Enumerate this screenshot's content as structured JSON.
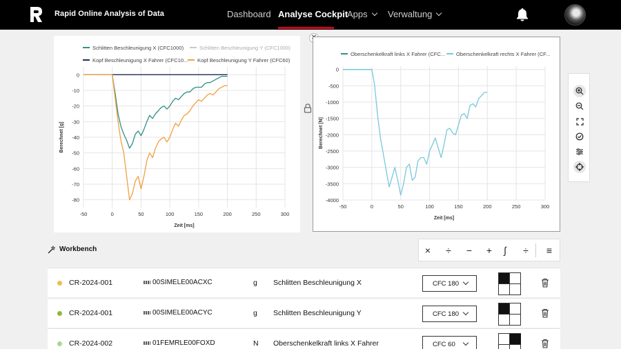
{
  "app": {
    "brand": "Rapid Online Analysis of Data"
  },
  "nav": {
    "items": [
      {
        "label": "Dashboard",
        "active": false,
        "dropdown": false
      },
      {
        "label": "Analyse Cockpit",
        "active": true,
        "dropdown": false
      },
      {
        "label": "Apps",
        "active": false,
        "dropdown": true
      },
      {
        "label": "Verwaltung",
        "active": false,
        "dropdown": true
      }
    ]
  },
  "colors": {
    "accent_red": "#d5001c",
    "teal": "#2f8f86",
    "navy": "#1f2d5a",
    "orange": "#f0a040",
    "lightblue": "#79c7dc",
    "lightgray": "#c8c8c8"
  },
  "charts": {
    "left": {
      "legend": [
        {
          "label": "Schlitten Beschleunigung X (CFC1000)",
          "color": "#2f8f86",
          "muted": false
        },
        {
          "label": "Schlitten Beschleunigung Y (CFC1000)",
          "color": "#c8c8c8",
          "muted": true
        },
        {
          "label": "Kopf Beschleunigung X Fahrer (CFC10...",
          "color": "#1f2d5a",
          "muted": false
        },
        {
          "label": "Kopf Beschleunigung Y Fahrer (CFC60)",
          "color": "#f0a040",
          "muted": false
        }
      ],
      "xlabel": "Zeit [ms]",
      "ylabel": "Berechnet [g]"
    },
    "right": {
      "legend": [
        {
          "label": "Oberschenkelkraft links X Fahrer (CFC...",
          "color": "#2f8f86"
        },
        {
          "label": "Oberschenkelkraft rechts X Fahrer (CF...",
          "color": "#79c7dc"
        }
      ],
      "xlabel": "Zeit [ms]",
      "ylabel": "Berechnet [N]"
    }
  },
  "chart_data": [
    {
      "type": "line",
      "xlabel": "Zeit [ms]",
      "ylabel": "Berechnet [g]",
      "xlim": [
        -50,
        300
      ],
      "ylim": [
        -85,
        5
      ],
      "xticks": [
        -50,
        0,
        50,
        100,
        150,
        200,
        250,
        300
      ],
      "yticks": [
        0,
        -10,
        -20,
        -30,
        -40,
        -50,
        -60,
        -70,
        -80
      ],
      "grid": true,
      "legend_position": "top",
      "series": [
        {
          "name": "Schlitten Beschleunigung X (CFC1000)",
          "color": "#2f8f86",
          "x": [
            -50,
            0,
            5,
            10,
            15,
            20,
            25,
            30,
            35,
            40,
            45,
            50,
            55,
            60,
            65,
            70,
            75,
            80,
            85,
            90,
            95,
            100,
            105,
            110,
            115,
            120,
            125,
            130,
            135,
            140,
            145,
            150,
            155,
            160,
            165,
            170,
            175,
            180,
            185,
            190,
            195,
            200
          ],
          "y": [
            0,
            0,
            -12,
            -25,
            -33,
            -38,
            -42,
            -47,
            -44,
            -38,
            -36,
            -39,
            -35,
            -30,
            -26,
            -28,
            -25,
            -23,
            -21,
            -20,
            -22,
            -20,
            -17,
            -15,
            -16,
            -14,
            -12,
            -11,
            -11,
            -9,
            -8,
            -8,
            -8,
            -6,
            -5,
            -5,
            -4,
            -3,
            -2,
            -1,
            -1,
            -1
          ]
        },
        {
          "name": "Schlitten Beschleunigung Y (CFC1000)",
          "color": "#c8c8c8",
          "x": [
            -50,
            200
          ],
          "y": [
            0,
            0
          ]
        },
        {
          "name": "Kopf Beschleunigung X Fahrer (CFC10...",
          "color": "#1f2d5a",
          "x": [
            -50,
            200
          ],
          "y": [
            0,
            0
          ]
        },
        {
          "name": "Kopf Beschleunigung Y Fahrer (CFC60)",
          "color": "#f0a040",
          "x": [
            -50,
            0,
            5,
            10,
            15,
            20,
            25,
            30,
            35,
            40,
            45,
            50,
            55,
            60,
            65,
            70,
            75,
            80,
            85,
            90,
            95,
            100,
            105,
            110,
            115,
            120,
            125,
            130,
            135,
            140,
            145,
            150,
            155,
            160,
            165,
            170,
            175,
            180,
            185,
            190,
            195,
            200
          ],
          "y": [
            0,
            0,
            -15,
            -30,
            -42,
            -50,
            -65,
            -80,
            -76,
            -68,
            -65,
            -73,
            -65,
            -55,
            -50,
            -53,
            -47,
            -43,
            -41,
            -40,
            -43,
            -40,
            -35,
            -31,
            -33,
            -29,
            -26,
            -25,
            -23,
            -20,
            -18,
            -16,
            -17,
            -15,
            -13,
            -12,
            -13,
            -11,
            -9,
            -8,
            -7,
            -7
          ]
        }
      ]
    },
    {
      "type": "line",
      "xlabel": "Zeit [ms]",
      "ylabel": "Berechnet [N]",
      "xlim": [
        -50,
        300
      ],
      "ylim": [
        -4000,
        100
      ],
      "xticks": [
        -50,
        0,
        50,
        100,
        150,
        200,
        250,
        300
      ],
      "yticks": [
        0,
        -500,
        -1000,
        -1500,
        -2000,
        -2500,
        -3000,
        -3500,
        -4000
      ],
      "grid": true,
      "legend_position": "top",
      "series": [
        {
          "name": "Oberschenkelkraft links X Fahrer (CFC...",
          "color": "#2f8f86",
          "x": [
            -50,
            0
          ],
          "y": [
            0,
            0
          ]
        },
        {
          "name": "Oberschenkelkraft rechts X Fahrer (CF...",
          "color": "#79c7dc",
          "x": [
            -50,
            0,
            5,
            10,
            15,
            20,
            25,
            30,
            35,
            40,
            45,
            50,
            55,
            60,
            65,
            70,
            75,
            80,
            85,
            90,
            95,
            100,
            105,
            110,
            115,
            120,
            125,
            130,
            135,
            140,
            145,
            150,
            155,
            160,
            165,
            170,
            175,
            180,
            185,
            190,
            195,
            200
          ],
          "y": [
            0,
            0,
            -500,
            -1400,
            -2100,
            -2600,
            -3100,
            -3600,
            -3300,
            -3000,
            -3400,
            -3850,
            -3500,
            -3000,
            -2900,
            -3400,
            -3300,
            -2800,
            -2700,
            -2700,
            -2900,
            -2500,
            -2300,
            -2100,
            -2400,
            -2700,
            -2300,
            -1850,
            -1800,
            -1950,
            -2000,
            -1700,
            -1400,
            -1350,
            -1500,
            -1100,
            -1050,
            -1150,
            -900,
            -800,
            -700,
            -700
          ]
        }
      ]
    }
  ],
  "workbench": {
    "title": "Workbench",
    "operations": [
      "×",
      "÷",
      "−",
      "+",
      "∫",
      "÷",
      "≡"
    ],
    "rows": [
      {
        "dot_color": "#e8c04a",
        "id": "CR-2024-001",
        "signal": "00SIMELE00ACXC",
        "unit": "g",
        "name": "Schlitten Beschleunigung X",
        "filter": "CFC 180",
        "quad": [
          1,
          0,
          0,
          0
        ]
      },
      {
        "dot_color": "#8fb83f",
        "id": "CR-2024-001",
        "signal": "00SIMELE00ACYC",
        "unit": "g",
        "name": "Schlitten Beschleunigung Y",
        "filter": "CFC 180",
        "quad": [
          1,
          0,
          0,
          0
        ]
      },
      {
        "dot_color": "#a8d890",
        "id": "CR-2024-002",
        "signal": "01FEMRLE00FOXD",
        "unit": "N",
        "name": "Oberschenkelkraft links X Fahrer",
        "filter": "CFC 60",
        "quad": [
          0,
          1,
          0,
          0
        ]
      }
    ]
  }
}
